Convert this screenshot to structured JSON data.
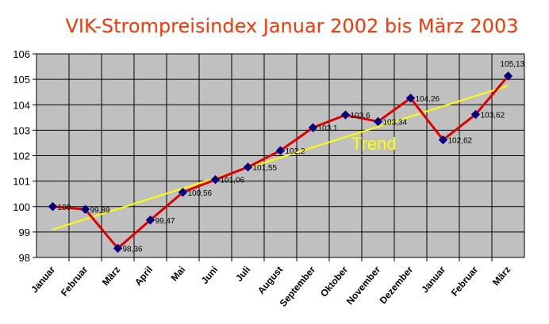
{
  "chart_data": {
    "type": "line",
    "title": "VIK-Strompreisindex Januar 2002 bis März 2003",
    "xlabel": "",
    "ylabel": "",
    "ylim": [
      98,
      106
    ],
    "yticks": [
      "98",
      "99",
      "100",
      "101",
      "102",
      "103",
      "104",
      "105",
      "106"
    ],
    "categories": [
      "Januar",
      "Februar",
      "März",
      "April",
      "Mai",
      "Juni",
      "Juli",
      "August",
      "September",
      "Oktober",
      "November",
      "Dezember",
      "Januar",
      "Februar",
      "März"
    ],
    "series": [
      {
        "values": [
          100,
          99.89,
          98.36,
          99.47,
          100.56,
          101.06,
          101.55,
          102.2,
          103.1,
          103.6,
          103.34,
          104.26,
          102.62,
          103.62,
          105.13
        ],
        "labels": [
          "100",
          "99,89",
          "98,36",
          "99,47",
          "100,56",
          "101,06",
          "101,55",
          "102,2",
          "103,1",
          "103,6",
          "103,34",
          "104,26",
          "102,62",
          "103,62",
          "105,13"
        ],
        "color": "#dd0000",
        "marker_color": "#000080"
      }
    ],
    "trend": {
      "label": "Trend",
      "start": 99.1,
      "end": 104.75,
      "color": "#ffff00"
    },
    "grid": true,
    "plot_background": "#c0c0c0"
  }
}
